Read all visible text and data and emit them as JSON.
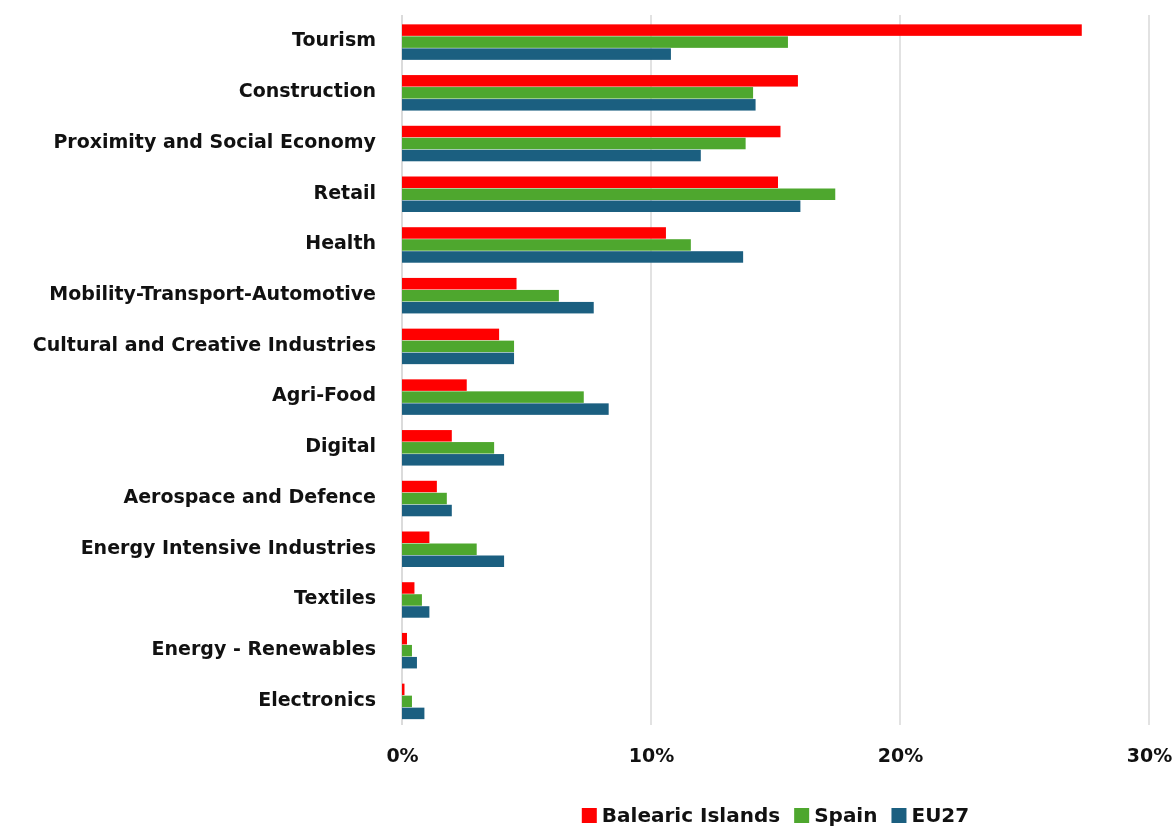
{
  "chart_data": {
    "type": "bar",
    "orientation": "horizontal",
    "categories": [
      "Tourism",
      "Construction",
      "Proximity and Social Economy",
      "Retail",
      "Health",
      "Mobility-Transport-Automotive",
      "Cultural and Creative Industries",
      "Agri-Food",
      "Digital",
      "Aerospace and Defence",
      "Energy Intensive Industries",
      "Textiles",
      "Energy - Renewables",
      "Electronics"
    ],
    "series": [
      {
        "name": "Balearic Islands",
        "color": "#ff0000",
        "values": [
          27.3,
          15.9,
          15.2,
          15.1,
          10.6,
          4.6,
          3.9,
          2.6,
          2.0,
          1.4,
          1.1,
          0.5,
          0.2,
          0.1
        ]
      },
      {
        "name": "Spain",
        "color": "#4ea72e",
        "values": [
          15.5,
          14.1,
          13.8,
          17.4,
          11.6,
          6.3,
          4.5,
          7.3,
          3.7,
          1.8,
          3.0,
          0.8,
          0.4,
          0.4
        ]
      },
      {
        "name": "EU27",
        "color": "#1b5f80",
        "values": [
          10.8,
          14.2,
          12.0,
          16.0,
          13.7,
          7.7,
          4.5,
          8.3,
          4.1,
          2.0,
          4.1,
          1.1,
          0.6,
          0.9
        ]
      }
    ],
    "xlim": [
      0,
      30
    ],
    "xticks": [
      {
        "value": 0,
        "label": "0%"
      },
      {
        "value": 10,
        "label": "10%"
      },
      {
        "value": 20,
        "label": "20%"
      },
      {
        "value": 30,
        "label": "30%"
      }
    ],
    "grid": "x",
    "legend": "bottom"
  }
}
